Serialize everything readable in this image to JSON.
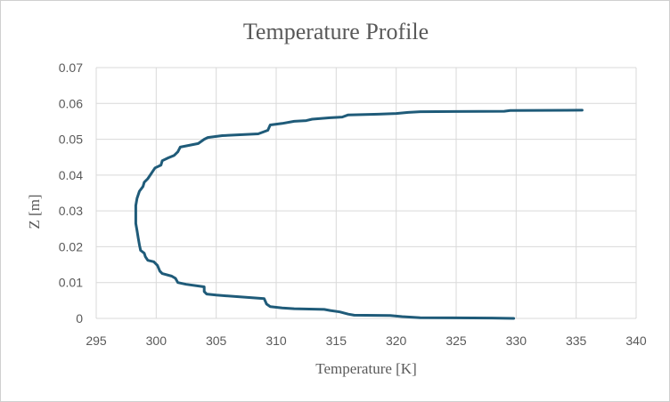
{
  "chart_data": {
    "type": "line",
    "title": "Temperature Profile",
    "xlabel": "Temperature [K]",
    "ylabel": "Z [m]",
    "xlim": [
      295,
      340
    ],
    "ylim": [
      0,
      0.07
    ],
    "x_ticks": [
      "295",
      "300",
      "305",
      "310",
      "315",
      "320",
      "325",
      "330",
      "335",
      "340"
    ],
    "y_ticks": [
      "0",
      "0.01",
      "0.02",
      "0.03",
      "0.04",
      "0.05",
      "0.06",
      "0.07"
    ],
    "grid": true,
    "legend": "none",
    "line_color": "#1f5b79",
    "grid_color": "#d9d9d9",
    "series": [
      {
        "points": [
          [
            329.8,
            0.0
          ],
          [
            328.0,
            0.0001
          ],
          [
            322.0,
            0.0002
          ],
          [
            320.5,
            0.0005
          ],
          [
            319.5,
            0.0008
          ],
          [
            316.5,
            0.0009
          ],
          [
            316.0,
            0.0012
          ],
          [
            315.3,
            0.0018
          ],
          [
            314.5,
            0.0022
          ],
          [
            314.0,
            0.0025
          ],
          [
            311.5,
            0.0027
          ],
          [
            310.5,
            0.0029
          ],
          [
            309.5,
            0.0033
          ],
          [
            309.2,
            0.004
          ],
          [
            309.0,
            0.0055
          ],
          [
            305.0,
            0.0065
          ],
          [
            304.2,
            0.0068
          ],
          [
            304.0,
            0.0075
          ],
          [
            304.0,
            0.0088
          ],
          [
            302.5,
            0.0095
          ],
          [
            301.8,
            0.01
          ],
          [
            301.6,
            0.0112
          ],
          [
            301.3,
            0.0118
          ],
          [
            300.5,
            0.0125
          ],
          [
            300.3,
            0.0132
          ],
          [
            300.1,
            0.0148
          ],
          [
            299.8,
            0.0158
          ],
          [
            299.3,
            0.0162
          ],
          [
            299.1,
            0.0172
          ],
          [
            299.0,
            0.0182
          ],
          [
            298.7,
            0.019
          ],
          [
            298.6,
            0.0205
          ],
          [
            298.5,
            0.0225
          ],
          [
            298.4,
            0.0245
          ],
          [
            298.3,
            0.0265
          ],
          [
            298.3,
            0.029
          ],
          [
            298.3,
            0.0315
          ],
          [
            298.4,
            0.0335
          ],
          [
            298.6,
            0.0355
          ],
          [
            298.9,
            0.0368
          ],
          [
            299.0,
            0.038
          ],
          [
            299.3,
            0.039
          ],
          [
            299.5,
            0.04
          ],
          [
            299.7,
            0.041
          ],
          [
            299.9,
            0.042
          ],
          [
            300.4,
            0.0428
          ],
          [
            300.5,
            0.044
          ],
          [
            301.0,
            0.0448
          ],
          [
            301.5,
            0.0455
          ],
          [
            301.8,
            0.0465
          ],
          [
            302.0,
            0.0478
          ],
          [
            303.5,
            0.0488
          ],
          [
            304.0,
            0.05
          ],
          [
            304.3,
            0.0505
          ],
          [
            305.5,
            0.051
          ],
          [
            308.5,
            0.0515
          ],
          [
            309.3,
            0.0525
          ],
          [
            309.5,
            0.054
          ],
          [
            310.5,
            0.0544
          ],
          [
            311.5,
            0.055
          ],
          [
            312.5,
            0.0552
          ],
          [
            313.0,
            0.0556
          ],
          [
            314.5,
            0.056
          ],
          [
            315.5,
            0.0562
          ],
          [
            316.0,
            0.0568
          ],
          [
            318.5,
            0.057
          ],
          [
            320.0,
            0.0572
          ],
          [
            321.0,
            0.0575
          ],
          [
            322.0,
            0.0577
          ],
          [
            329.0,
            0.0578
          ],
          [
            329.5,
            0.058
          ],
          [
            335.5,
            0.0581
          ]
        ]
      }
    ]
  }
}
